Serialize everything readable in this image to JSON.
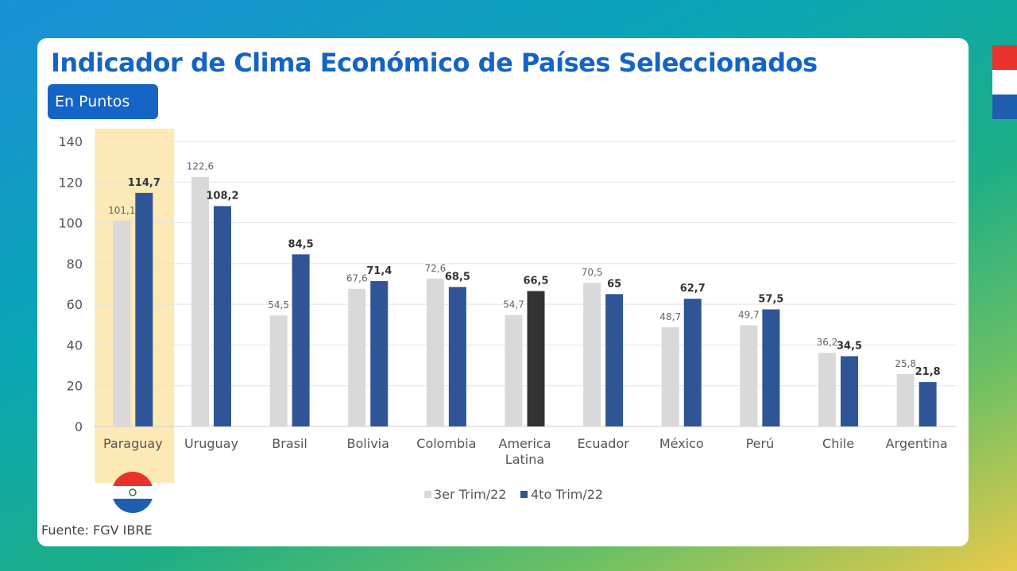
{
  "title": "Indicador de Clima Económico de Países Seleccionados",
  "unit_badge": "En Puntos",
  "source": "Fuente: FGV IBRE",
  "colors": {
    "series_a": "#d9d9d9",
    "series_b": "#2f5597",
    "latam_b": "#333333",
    "highlight": "#fde9b5",
    "title": "#1464c8",
    "flag_red": "#e8322b",
    "flag_blue": "#1f5fb0"
  },
  "chart_data": {
    "type": "bar",
    "categories": [
      "Paraguay",
      "Uruguay",
      "Brasil",
      "Bolivia",
      "Colombia",
      "America Latina",
      "Ecuador",
      "México",
      "Perú",
      "Chile",
      "Argentina"
    ],
    "series": [
      {
        "name": "3er Trim/22",
        "values": [
          101.1,
          122.6,
          54.5,
          67.6,
          72.6,
          54.7,
          70.5,
          48.7,
          49.7,
          36.2,
          25.8
        ],
        "labels": [
          "101,1",
          "122,6",
          "54,5",
          "67,6",
          "72,6",
          "54,7",
          "70,5",
          "48,7",
          "49,7",
          "36,2",
          "25,8"
        ]
      },
      {
        "name": "4to Trim/22",
        "values": [
          114.7,
          108.2,
          84.5,
          71.4,
          68.5,
          66.5,
          65,
          62.7,
          57.5,
          34.5,
          21.8
        ],
        "labels": [
          "114,7",
          "108,2",
          "84,5",
          "71,4",
          "68,5",
          "66,5",
          "65",
          "62,7",
          "57,5",
          "34,5",
          "21,8"
        ]
      }
    ],
    "yticks": [
      "0",
      "20",
      "40",
      "60",
      "80",
      "100",
      "120",
      "140"
    ],
    "ylim": [
      0,
      140
    ],
    "highlighted_category": "Paraguay",
    "legend_position": "bottom",
    "grid": true
  }
}
